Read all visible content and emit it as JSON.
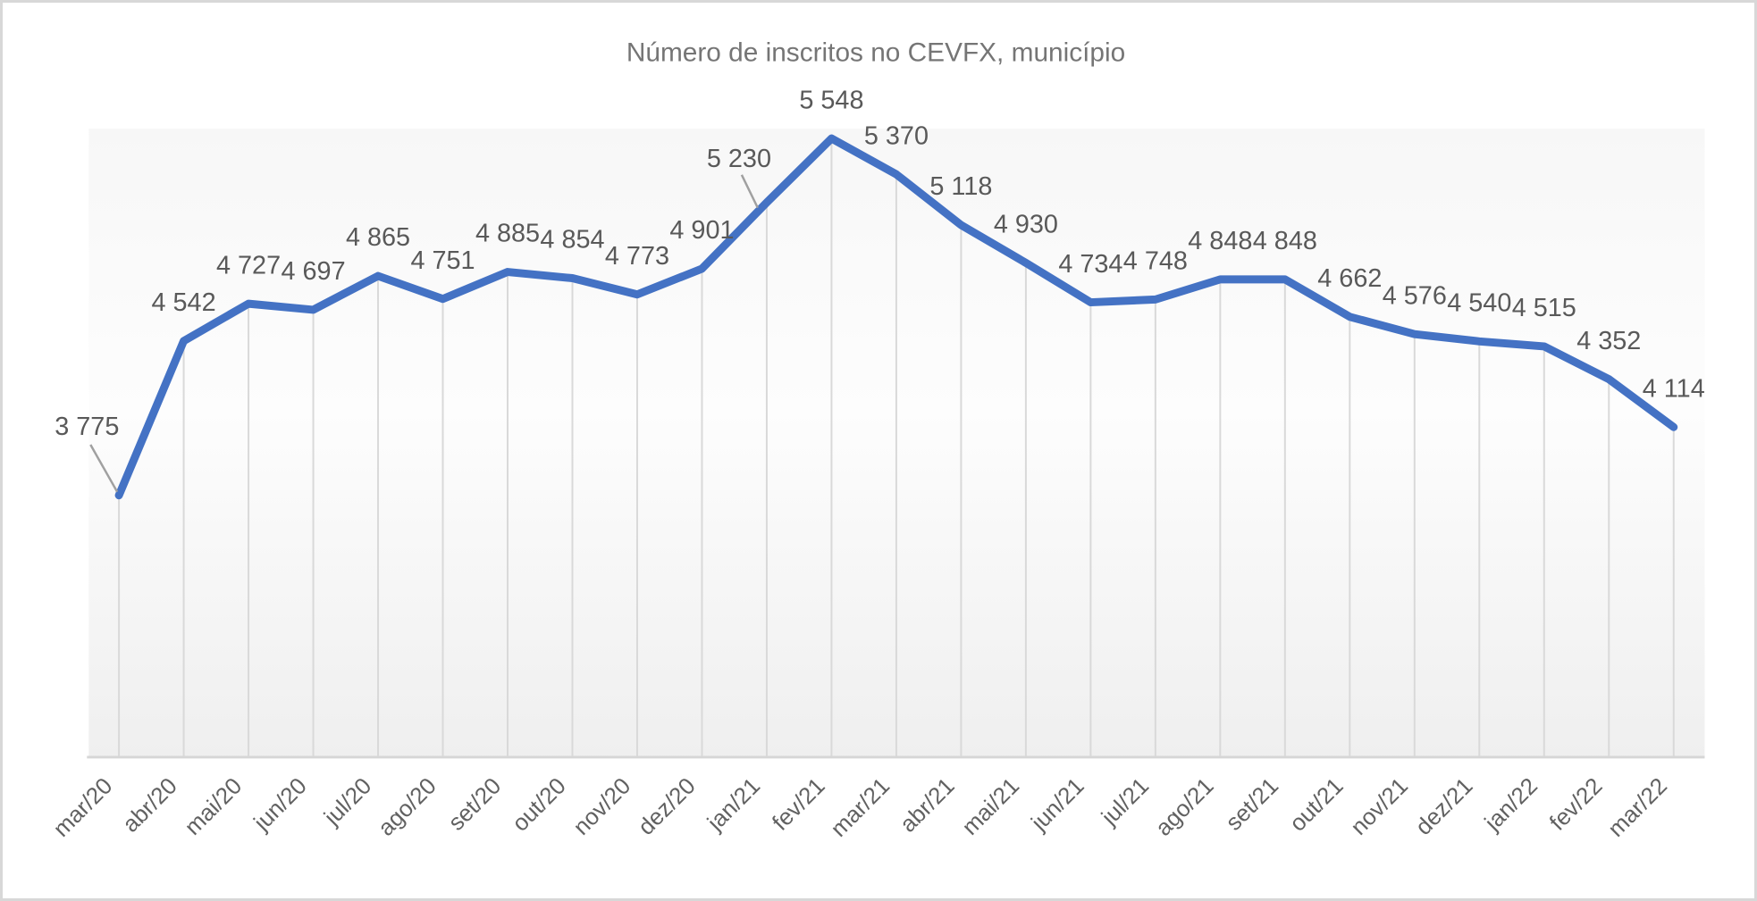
{
  "chart_data": {
    "type": "line",
    "title": "Número de inscritos no CEVFX, município",
    "legend": "none",
    "y_axis_labels": "hidden",
    "x_axis_label_rotation": -45,
    "grid": "vertical-drop-lines-per-point",
    "ylim_rendered": [
      3775,
      5548
    ],
    "categories": [
      "mar/20",
      "abr/20",
      "mai/20",
      "jun/20",
      "jul/20",
      "ago/20",
      "set/20",
      "out/20",
      "nov/20",
      "dez/20",
      "jan/21",
      "fev/21",
      "mar/21",
      "abr/21",
      "mai/21",
      "jun/21",
      "jul/21",
      "ago/21",
      "set/21",
      "out/21",
      "nov/21",
      "dez/21",
      "jan/22",
      "fev/22",
      "mar/22"
    ],
    "values": [
      3775,
      4542,
      4727,
      4697,
      4865,
      4751,
      4885,
      4854,
      4773,
      4901,
      5230,
      5548,
      5370,
      5118,
      4930,
      4734,
      4748,
      4848,
      4848,
      4662,
      4576,
      4540,
      4515,
      4352,
      4114
    ],
    "point_labels": [
      "3 775",
      "4 542",
      "4 727",
      "4 697",
      "4 865",
      "4 751",
      "4 885",
      "4 854",
      "4 773",
      "4 901",
      "5 230",
      "5 548",
      "5 370",
      "5 118",
      "4 930",
      "4 734",
      "4 748",
      "4 848",
      "4 848",
      "4 662",
      "4 576",
      "4 540",
      "4 515",
      "4 352",
      "4 114"
    ],
    "callout_categories": [
      "mar/20",
      "jan/21"
    ],
    "colors": {
      "line": "#4472c4",
      "point_label": "#595959",
      "title": "#757575",
      "axis_label": "#616161",
      "drop_line": "#d9d9d9",
      "baseline": "#d6d6d6",
      "leader_line": "#a0a0a0",
      "plot_bg_top": "#f7f7f7",
      "plot_bg_mid": "#fdfdfd",
      "plot_bg_bottom": "#efefef",
      "frame_border": "#d8d8d8"
    }
  }
}
